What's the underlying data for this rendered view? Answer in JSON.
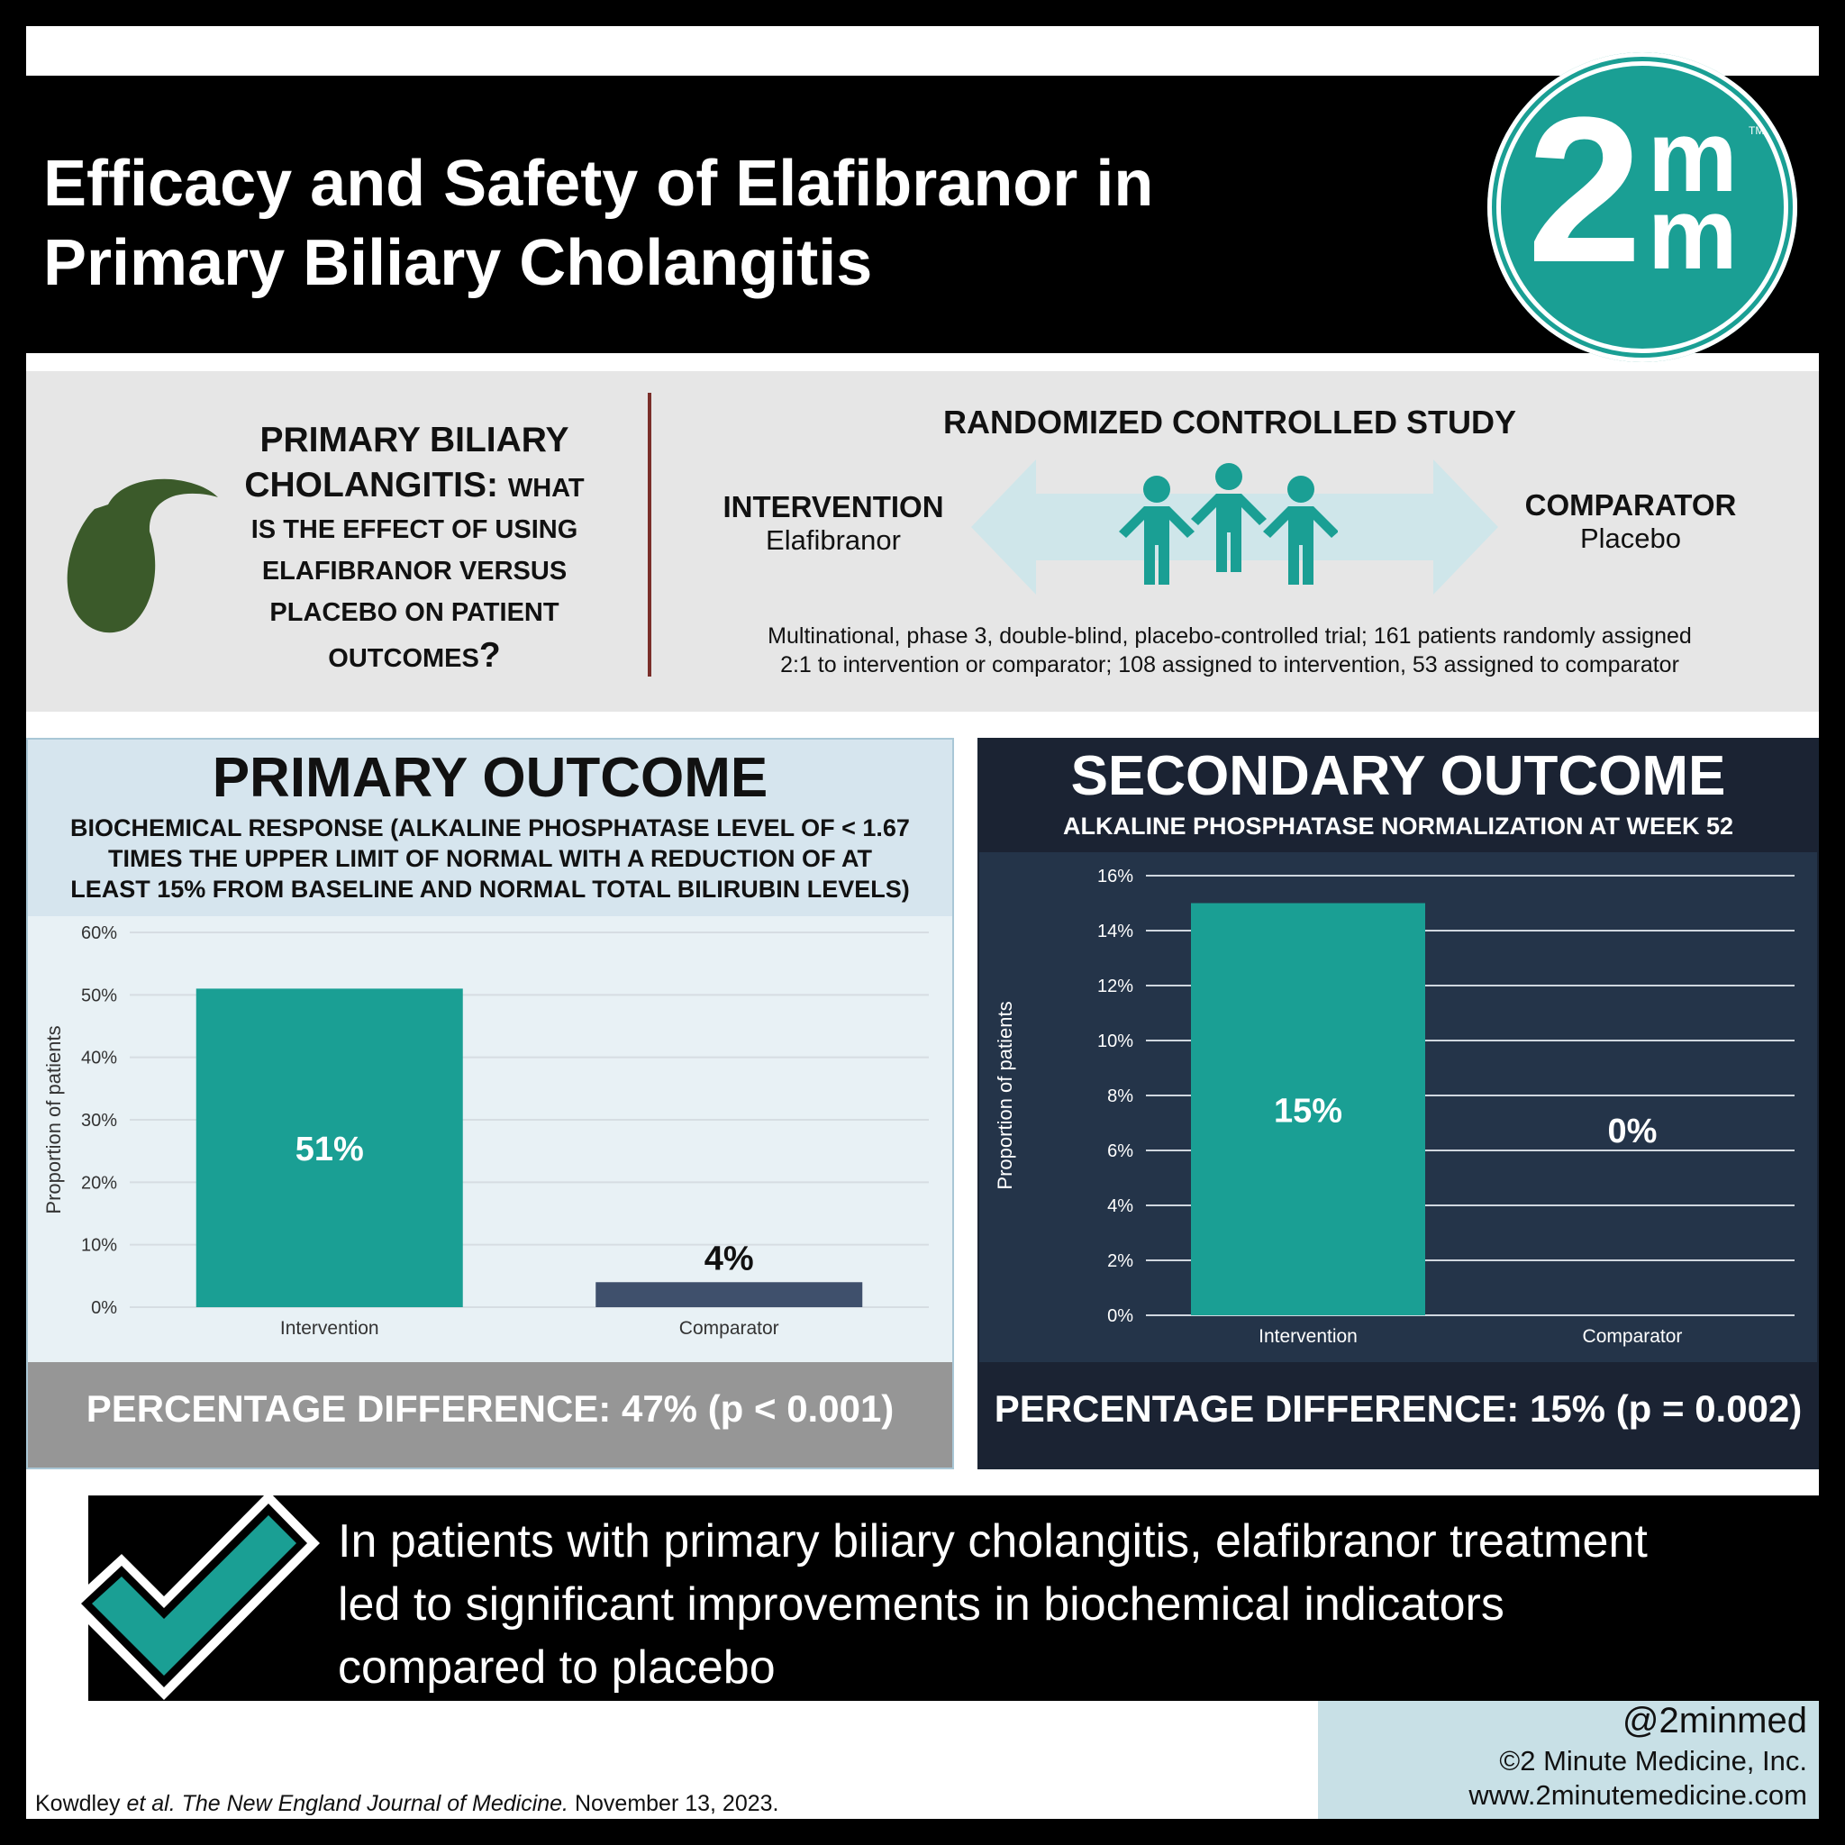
{
  "title_line1": "Efficacy and Safety of Elafibranor in",
  "title_line2": "Primary Biliary Cholangitis",
  "logo": {
    "numeral": "2",
    "m": "m",
    "tm": "TM"
  },
  "question": {
    "big1": "PRIMARY BILIARY",
    "big2": "CHOLANGITIS:",
    "small1": "WHAT",
    "small2": "IS THE EFFECT OF USING",
    "small3": "ELAFIBRANOR VERSUS",
    "small4": "PLACEBO ON PATIENT",
    "small5": "OUTCOMES",
    "mark": "?"
  },
  "study": {
    "title": "RANDOMIZED CONTROLLED STUDY",
    "intervention_label": "INTERVENTION",
    "intervention_value": "Elafibranor",
    "comparator_label": "COMPARATOR",
    "comparator_value": "Placebo",
    "desc1": "Multinational, phase 3, double-blind, placebo-controlled trial; 161 patients randomly assigned",
    "desc2": "2:1 to intervention or comparator; 108 assigned to intervention, 53 assigned to comparator"
  },
  "primary": {
    "title": "PRIMARY OUTCOME",
    "sub1": "BIOCHEMICAL RESPONSE (ALKALINE PHOSPHATASE LEVEL OF < 1.67",
    "sub2": "TIMES THE UPPER LIMIT OF NORMAL WITH A REDUCTION OF AT",
    "sub3": "LEAST 15% FROM BASELINE AND NORMAL TOTAL BILIRUBIN LEVELS)",
    "footer": "PERCENTAGE DIFFERENCE: 47% (p < 0.001)"
  },
  "secondary": {
    "title": "SECONDARY OUTCOME",
    "sub": "ALKALINE PHOSPHATASE NORMALIZATION AT WEEK 52",
    "footer": "PERCENTAGE DIFFERENCE: 15% (p = 0.002)"
  },
  "chart_data": [
    {
      "type": "bar",
      "categories": [
        "Intervention",
        "Comparator"
      ],
      "values": [
        51,
        4
      ],
      "data_labels": [
        "51%",
        "4%"
      ],
      "ylabel": "Proportion of patients",
      "ylim": [
        0,
        60
      ],
      "yticks": [
        "0%",
        "10%",
        "20%",
        "30%",
        "40%",
        "50%",
        "60%"
      ],
      "colors": [
        "#1a9f94",
        "#3f506c"
      ],
      "grid": true
    },
    {
      "type": "bar",
      "categories": [
        "Intervention",
        "Comparator"
      ],
      "values": [
        15,
        0
      ],
      "data_labels": [
        "15%",
        "0%"
      ],
      "ylabel": "Proportion of patients",
      "ylim": [
        0,
        16
      ],
      "yticks": [
        "0%",
        "2%",
        "4%",
        "6%",
        "8%",
        "10%",
        "12%",
        "14%",
        "16%"
      ],
      "colors": [
        "#1a9f94",
        "#3f506c"
      ],
      "grid": true
    }
  ],
  "conclusion": {
    "line1": "In patients with primary biliary cholangitis, elafibranor treatment",
    "line2": "led to significant improvements in biochemical indicators",
    "line3": "compared to placebo"
  },
  "footer": {
    "handle": "@2minmed",
    "copyright": "©2 Minute Medicine, Inc.",
    "url": "www.2minutemedicine.com",
    "cite_authors": "Kowdley ",
    "cite_etal": "et al. The New England Journal of Medicine.",
    "cite_date": " November 13, 2023."
  },
  "colors": {
    "teal": "#1a9f94",
    "navy": "#243449",
    "slate": "#3f506c",
    "gallbladder": "#3b5a2a"
  }
}
